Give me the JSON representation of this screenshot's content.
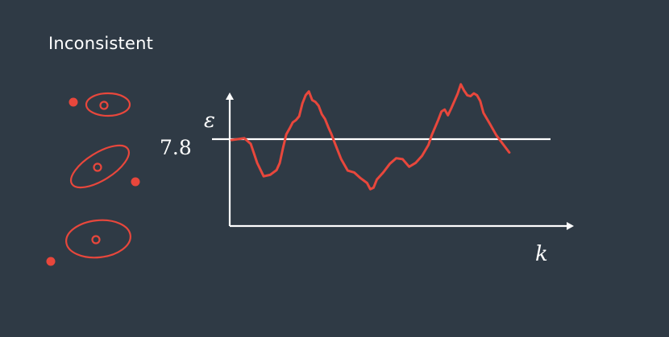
{
  "title": "Inconsistent",
  "colors": {
    "background": "#2f3a45",
    "accent": "#e8473c",
    "foreground": "#ffffff"
  },
  "chart_data": {
    "type": "line",
    "xlabel": "k",
    "ylabel": "ε",
    "threshold": {
      "value": 7.8,
      "label": "7.8"
    },
    "ylim": [
      6.5,
      9.2
    ],
    "xlim": [
      0,
      100
    ],
    "grid": false,
    "series": [
      {
        "values": [
          [
            0,
            7.78
          ],
          [
            2,
            7.8
          ],
          [
            4,
            7.82
          ],
          [
            6,
            7.7
          ],
          [
            8,
            7.3
          ],
          [
            10,
            7.02
          ],
          [
            12,
            7.05
          ],
          [
            14,
            7.15
          ],
          [
            15,
            7.3
          ],
          [
            16,
            7.62
          ],
          [
            17,
            7.9
          ],
          [
            18,
            8.02
          ],
          [
            19,
            8.15
          ],
          [
            20,
            8.2
          ],
          [
            21,
            8.28
          ],
          [
            22,
            8.55
          ],
          [
            23,
            8.72
          ],
          [
            24,
            8.8
          ],
          [
            25,
            8.62
          ],
          [
            26,
            8.58
          ],
          [
            27,
            8.5
          ],
          [
            28,
            8.32
          ],
          [
            29,
            8.22
          ],
          [
            30,
            8.05
          ],
          [
            31,
            7.9
          ],
          [
            32,
            7.72
          ],
          [
            34,
            7.38
          ],
          [
            36,
            7.14
          ],
          [
            38,
            7.1
          ],
          [
            40,
            6.98
          ],
          [
            42,
            6.88
          ],
          [
            43,
            6.75
          ],
          [
            44,
            6.78
          ],
          [
            45,
            6.95
          ],
          [
            47,
            7.1
          ],
          [
            49,
            7.28
          ],
          [
            51,
            7.4
          ],
          [
            53,
            7.38
          ],
          [
            55,
            7.22
          ],
          [
            57,
            7.3
          ],
          [
            59,
            7.45
          ],
          [
            61,
            7.68
          ],
          [
            62,
            7.88
          ],
          [
            64,
            8.2
          ],
          [
            65,
            8.38
          ],
          [
            66,
            8.42
          ],
          [
            67,
            8.3
          ],
          [
            68,
            8.44
          ],
          [
            70,
            8.75
          ],
          [
            71,
            8.95
          ],
          [
            72,
            8.82
          ],
          [
            73,
            8.72
          ],
          [
            74,
            8.7
          ],
          [
            75,
            8.76
          ],
          [
            76,
            8.72
          ],
          [
            77,
            8.6
          ],
          [
            78,
            8.35
          ],
          [
            80,
            8.12
          ],
          [
            82,
            7.88
          ],
          [
            84,
            7.7
          ],
          [
            86,
            7.52
          ]
        ]
      }
    ]
  },
  "glyphs": [
    {
      "name": "glyph-1",
      "outer": {
        "rx": 1,
        "ry": 0.35,
        "rot": 0
      },
      "inner": 0.16,
      "dot": "left"
    },
    {
      "name": "glyph-2",
      "outer": {
        "rx": 1,
        "ry": 0.45,
        "rot": -32
      },
      "inner": 0.16,
      "dot": "right-below"
    },
    {
      "name": "glyph-3",
      "outer": {
        "rx": 1,
        "ry": 0.55,
        "rot": 0
      },
      "inner": 0.16,
      "dot": "left-below"
    }
  ]
}
